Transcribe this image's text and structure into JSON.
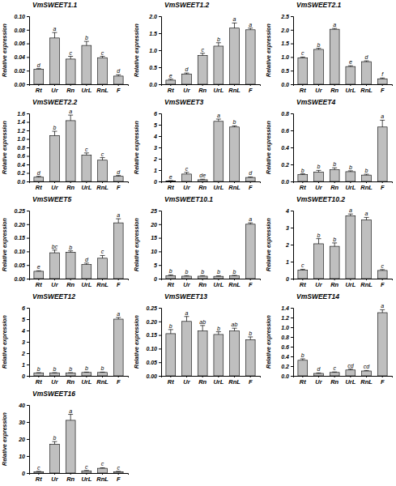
{
  "chart_data": [
    {
      "type": "bar",
      "title": "VmSWEET1.1",
      "y_label": "Relative expression",
      "color": "#bfbfbf",
      "categories": [
        "Rt",
        "Ur",
        "Rn",
        "UrL",
        "RnL",
        "F"
      ],
      "values": [
        0.022,
        0.068,
        0.037,
        0.057,
        0.039,
        0.012
      ],
      "errors": [
        0.001,
        0.008,
        0.004,
        0.006,
        0.002,
        0.002
      ],
      "annotations": [
        "d",
        "a",
        "c",
        "b",
        "c",
        "d"
      ],
      "ylim": [
        0,
        0.1
      ],
      "yticks": [
        {
          "value": 0,
          "label": "0.00"
        },
        {
          "value": 0.02,
          "label": "0.02"
        },
        {
          "value": 0.04,
          "label": "0.04"
        },
        {
          "value": 0.06,
          "label": "0.06"
        },
        {
          "value": 0.08,
          "label": "0.08"
        },
        {
          "value": 0.1,
          "label": "0.10"
        }
      ]
    },
    {
      "type": "bar",
      "title": "VmSWEET1.2",
      "y_label": "Relative expression",
      "color": "#bfbfbf",
      "categories": [
        "Rt",
        "Ur",
        "Rn",
        "UrL",
        "RnL",
        "F"
      ],
      "values": [
        0.12,
        0.3,
        0.85,
        1.12,
        1.65,
        1.6
      ],
      "errors": [
        0.03,
        0.03,
        0.06,
        0.1,
        0.15,
        0.05
      ],
      "annotations": [
        "e",
        "d",
        "c",
        "b",
        "a",
        "a"
      ],
      "ylim": [
        0,
        2.0
      ],
      "yticks": [
        {
          "value": 0,
          "label": "0.0"
        },
        {
          "value": 0.5,
          "label": "0.5"
        },
        {
          "value": 1.0,
          "label": "1.0"
        },
        {
          "value": 1.5,
          "label": "1.5"
        },
        {
          "value": 2.0,
          "label": "2.0"
        }
      ]
    },
    {
      "type": "bar",
      "title": "VmSWEET2.1",
      "y_label": "Relative expression",
      "color": "#bfbfbf",
      "categories": [
        "Rt",
        "Ur",
        "Rn",
        "UrL",
        "RnL",
        "F"
      ],
      "values": [
        0.97,
        1.28,
        2.02,
        0.65,
        0.83,
        0.2
      ],
      "errors": [
        0.03,
        0.04,
        0.03,
        0.03,
        0.03,
        0.03
      ],
      "annotations": [
        "c",
        "b",
        "a",
        "e",
        "d",
        "f"
      ],
      "ylim": [
        0,
        2.5
      ],
      "yticks": [
        {
          "value": 0,
          "label": "0.0"
        },
        {
          "value": 0.5,
          "label": "0.5"
        },
        {
          "value": 1.0,
          "label": "1.0"
        },
        {
          "value": 1.5,
          "label": "1.5"
        },
        {
          "value": 2.0,
          "label": "2.0"
        },
        {
          "value": 2.5,
          "label": "2.5"
        }
      ]
    },
    {
      "type": "bar",
      "title": "VmSWEET2.2",
      "y_label": "Relative expression",
      "color": "#bfbfbf",
      "categories": [
        "Rt",
        "Ur",
        "Rn",
        "UrL",
        "RnL",
        "F"
      ],
      "values": [
        0.1,
        1.08,
        1.43,
        0.62,
        0.5,
        0.12
      ],
      "errors": [
        0.02,
        0.1,
        0.13,
        0.05,
        0.06,
        0.02
      ],
      "annotations": [
        "d",
        "b",
        "a",
        "c",
        "c",
        "d"
      ],
      "ylim": [
        0,
        1.6
      ],
      "yticks": [
        {
          "value": 0,
          "label": "0.0"
        },
        {
          "value": 0.2,
          "label": "0.2"
        },
        {
          "value": 0.4,
          "label": "0.4"
        },
        {
          "value": 0.6,
          "label": "0.6"
        },
        {
          "value": 0.8,
          "label": "0.8"
        },
        {
          "value": 1.0,
          "label": "1.0"
        },
        {
          "value": 1.2,
          "label": "1.2"
        },
        {
          "value": 1.4,
          "label": "1.4"
        },
        {
          "value": 1.6,
          "label": "1.6"
        }
      ]
    },
    {
      "type": "bar",
      "title": "VmSWEET3",
      "y_label": "Relative expression",
      "color": "#bfbfbf",
      "categories": [
        "Rt",
        "Ur",
        "Rn",
        "UrL",
        "RnL",
        "F"
      ],
      "values": [
        0.05,
        0.65,
        0.15,
        5.3,
        4.8,
        0.35
      ],
      "errors": [
        0.02,
        0.15,
        0.05,
        0.2,
        0.1,
        0.05
      ],
      "annotations": [
        "e",
        "c",
        "de",
        "a",
        "b",
        "d"
      ],
      "ylim": [
        0,
        6
      ],
      "yticks": [
        0,
        1,
        2,
        3,
        4,
        5,
        6
      ]
    },
    {
      "type": "bar",
      "title": "VmSWEET4",
      "y_label": "Relative expression",
      "color": "#bfbfbf",
      "categories": [
        "Rt",
        "Ur",
        "Rn",
        "UrL",
        "RnL",
        "F"
      ],
      "values": [
        0.08,
        0.11,
        0.14,
        0.115,
        0.075,
        0.64
      ],
      "errors": [
        0.01,
        0.02,
        0.02,
        0.01,
        0.01,
        0.08
      ],
      "annotations": [
        "b",
        "b",
        "b",
        "b",
        "b",
        "a"
      ],
      "ylim": [
        0,
        0.8
      ],
      "yticks": [
        {
          "value": 0,
          "label": "0.0"
        },
        {
          "value": 0.2,
          "label": "0.2"
        },
        {
          "value": 0.4,
          "label": "0.4"
        },
        {
          "value": 0.6,
          "label": "0.6"
        },
        {
          "value": 0.8,
          "label": "0.8"
        }
      ]
    },
    {
      "type": "bar",
      "title": "VmSWEET5",
      "y_label": "Relative expression",
      "color": "#bfbfbf",
      "categories": [
        "Rt",
        "Ur",
        "Rn",
        "UrL",
        "RnL",
        "F"
      ],
      "values": [
        0.027,
        0.095,
        0.097,
        0.052,
        0.075,
        0.205
      ],
      "errors": [
        0.002,
        0.01,
        0.005,
        0.005,
        0.01,
        0.015
      ],
      "annotations": [
        "e",
        "bc",
        "b",
        "d",
        "c",
        "a"
      ],
      "ylim": [
        0,
        0.25
      ],
      "yticks": [
        {
          "value": 0,
          "label": "0.00"
        },
        {
          "value": 0.05,
          "label": "0.05"
        },
        {
          "value": 0.1,
          "label": "0.10"
        },
        {
          "value": 0.15,
          "label": "0.15"
        },
        {
          "value": 0.2,
          "label": "0.20"
        },
        {
          "value": 0.25,
          "label": "0.25"
        }
      ]
    },
    {
      "type": "bar",
      "title": "VmSWEET10.1",
      "y_label": "Relative expression",
      "color": "#bfbfbf",
      "categories": [
        "Rt",
        "Ur",
        "Rn",
        "UrL",
        "RnL",
        "F"
      ],
      "values": [
        1.1,
        0.9,
        0.9,
        0.85,
        1.0,
        20.0
      ],
      "errors": [
        0.3,
        0.2,
        0.2,
        0.2,
        0.2,
        0.5
      ],
      "annotations": [
        "b",
        "b",
        "b",
        "b",
        "b",
        "a"
      ],
      "ylim": [
        0,
        25
      ],
      "yticks": [
        0,
        5,
        10,
        15,
        20,
        25
      ]
    },
    {
      "type": "bar",
      "title": "VmSWEET10.2",
      "y_label": "Relative expression",
      "color": "#bfbfbf",
      "categories": [
        "Rt",
        "Ur",
        "Rn",
        "UrL",
        "RnL",
        "F"
      ],
      "values": [
        0.5,
        2.05,
        1.9,
        3.7,
        3.45,
        0.48
      ],
      "errors": [
        0.05,
        0.3,
        0.2,
        0.1,
        0.15,
        0.05
      ],
      "annotations": [
        "c",
        "b",
        "b",
        "a",
        "a",
        "c"
      ],
      "ylim": [
        0,
        4
      ],
      "yticks": [
        0,
        1,
        2,
        3,
        4
      ]
    },
    {
      "type": "bar",
      "title": "VmSWEET12",
      "y_label": "Relative expression",
      "color": "#bfbfbf",
      "categories": [
        "Rt",
        "Ur",
        "Rn",
        "UrL",
        "RnL",
        "F"
      ],
      "values": [
        0.25,
        0.25,
        0.25,
        0.3,
        0.3,
        5.0
      ],
      "errors": [
        0.03,
        0.03,
        0.03,
        0.03,
        0.03,
        0.15
      ],
      "annotations": [
        "b",
        "b",
        "b",
        "b",
        "b",
        "a"
      ],
      "ylim": [
        0,
        6
      ],
      "yticks": [
        0,
        1,
        2,
        3,
        4,
        5,
        6
      ]
    },
    {
      "type": "bar",
      "title": "VmSWEET13",
      "y_label": "Relative expression",
      "color": "#bfbfbf",
      "categories": [
        "Rt",
        "Ur",
        "Rn",
        "UrL",
        "RnL",
        "F"
      ],
      "values": [
        0.155,
        0.2,
        0.165,
        0.152,
        0.165,
        0.133
      ],
      "errors": [
        0.015,
        0.018,
        0.02,
        0.01,
        0.01,
        0.01
      ],
      "annotations": [
        "b",
        "a",
        "ab",
        "b",
        "ab",
        "b"
      ],
      "ylim": [
        0,
        0.25
      ],
      "yticks": [
        {
          "value": 0,
          "label": "0.00"
        },
        {
          "value": 0.05,
          "label": "0.05"
        },
        {
          "value": 0.1,
          "label": "0.10"
        },
        {
          "value": 0.15,
          "label": "0.15"
        },
        {
          "value": 0.2,
          "label": "0.20"
        },
        {
          "value": 0.25,
          "label": "0.25"
        }
      ]
    },
    {
      "type": "bar",
      "title": "VmSWEET14",
      "y_label": "Relative expression",
      "color": "#bfbfbf",
      "categories": [
        "Rt",
        "Ur",
        "Rn",
        "UrL",
        "RnL",
        "F"
      ],
      "values": [
        0.32,
        0.05,
        0.07,
        0.12,
        0.1,
        1.3
      ],
      "errors": [
        0.03,
        0.01,
        0.01,
        0.02,
        0.01,
        0.06
      ],
      "annotations": [
        "b",
        "d",
        "c",
        "cd",
        "cd",
        "a"
      ],
      "ylim": [
        0,
        1.4
      ],
      "yticks": [
        {
          "value": 0,
          "label": "0.0"
        },
        {
          "value": 0.2,
          "label": "0.2"
        },
        {
          "value": 0.4,
          "label": "0.4"
        },
        {
          "value": 0.6,
          "label": "0.6"
        },
        {
          "value": 0.8,
          "label": "0.8"
        },
        {
          "value": 1.0,
          "label": "1.0"
        },
        {
          "value": 1.2,
          "label": "1.2"
        },
        {
          "value": 1.4,
          "label": "1.4"
        }
      ]
    },
    {
      "type": "bar",
      "title": "VmSWEET16",
      "y_label": "Relative expression",
      "color": "#bfbfbf",
      "categories": [
        "Rt",
        "Ur",
        "Rn",
        "UrL",
        "RnL",
        "F"
      ],
      "values": [
        0.8,
        17,
        31,
        1.2,
        2.8,
        0.8
      ],
      "errors": [
        0.2,
        1.5,
        3.5,
        0.3,
        0.3,
        0.2
      ],
      "annotations": [
        "c",
        "b",
        "a",
        "c",
        "c",
        "c"
      ],
      "ylim": [
        0,
        40
      ],
      "yticks": [
        0,
        10,
        20,
        30,
        40
      ]
    }
  ]
}
